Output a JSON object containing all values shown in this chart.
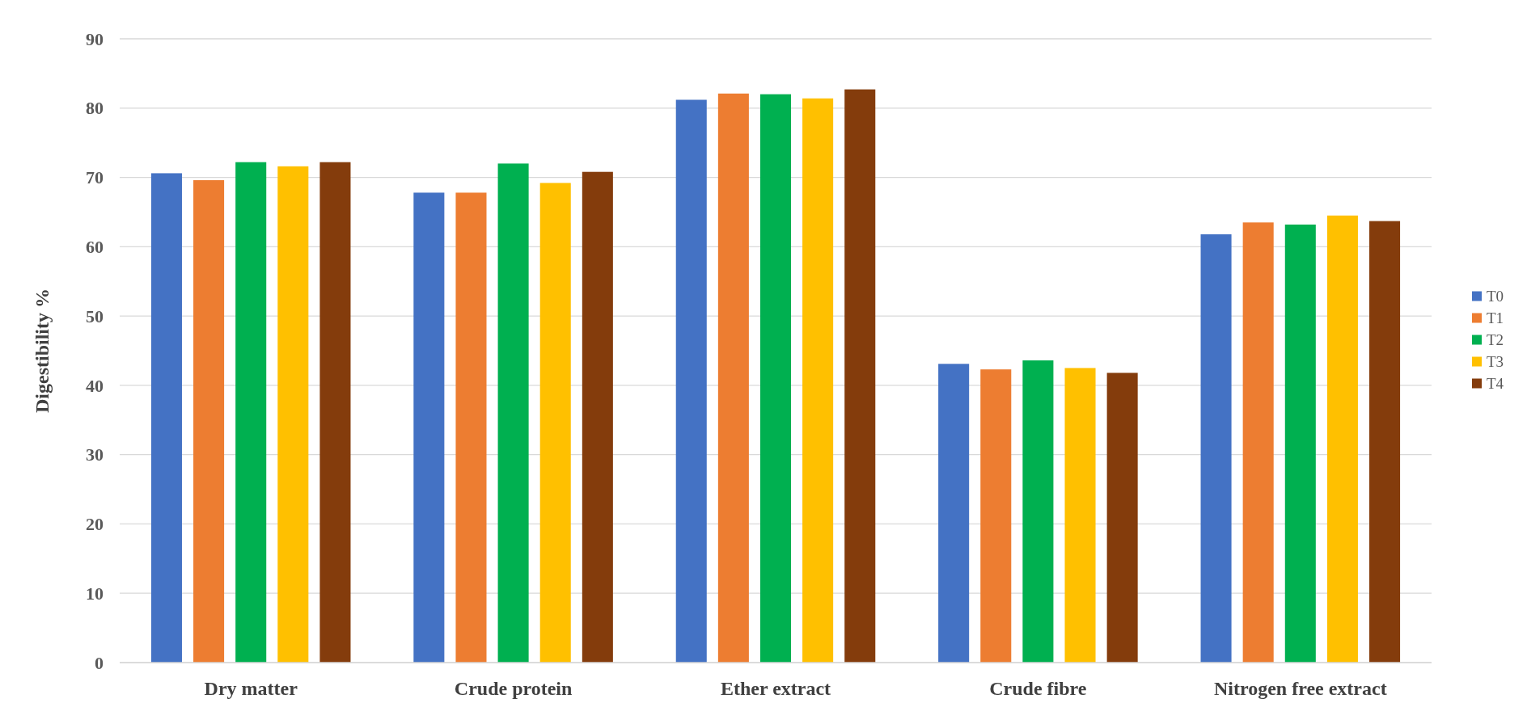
{
  "chart_data": {
    "type": "bar",
    "ylabel": "Digestibility %",
    "categories": [
      "Dry matter",
      "Crude protein",
      "Ether extract",
      "Crude fibre",
      "Nitrogen free extract"
    ],
    "series": [
      {
        "name": "T0",
        "color": "#4472c4",
        "values": [
          70.6,
          67.8,
          81.2,
          43.1,
          61.8
        ]
      },
      {
        "name": "T1",
        "color": "#ed7d31",
        "values": [
          69.6,
          67.8,
          82.1,
          42.3,
          63.5
        ]
      },
      {
        "name": "T2",
        "color": "#00b050",
        "values": [
          72.2,
          72.0,
          82.0,
          43.6,
          63.2
        ]
      },
      {
        "name": "T3",
        "color": "#ffc000",
        "values": [
          71.6,
          69.2,
          81.4,
          42.5,
          64.5
        ]
      },
      {
        "name": "T4",
        "color": "#843c0c",
        "values": [
          72.2,
          70.8,
          82.7,
          41.8,
          63.7
        ]
      }
    ],
    "ylim": [
      0,
      90
    ],
    "yticks": [
      0,
      10,
      20,
      30,
      40,
      50,
      60,
      70,
      80,
      90
    ],
    "grid": "y",
    "legend": "right"
  }
}
